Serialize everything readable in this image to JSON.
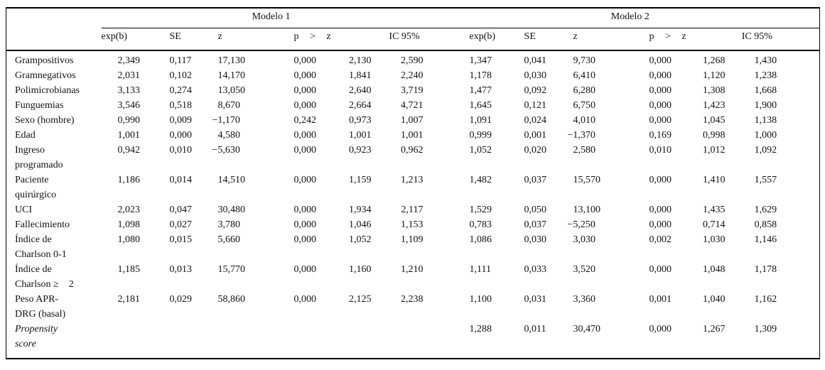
{
  "table": {
    "model1_label": "Modelo 1",
    "model2_label": "Modelo 2",
    "col_headers": {
      "expb": "exp(b)",
      "se": "SE",
      "z": "z",
      "p": "p > z",
      "ic": "IC 95%"
    },
    "rows": [
      {
        "label": "Grampositivos",
        "italic": false,
        "m1": [
          "2,349",
          "0,117",
          "17,130",
          "0,000",
          "2,130",
          "2,590"
        ],
        "m2": [
          "1,347",
          "0,041",
          "9,730",
          "0,000",
          "1,268",
          "1,430"
        ]
      },
      {
        "label": "Gramnegativos",
        "italic": false,
        "m1": [
          "2,031",
          "0,102",
          "14,170",
          "0,000",
          "1,841",
          "2,240"
        ],
        "m2": [
          "1,178",
          "0,030",
          "6,410",
          "0,000",
          "1,120",
          "1,238"
        ]
      },
      {
        "label": "Polimicrobianas",
        "italic": false,
        "m1": [
          "3,133",
          "0,274",
          "13,050",
          "0,000",
          "2,640",
          "3,719"
        ],
        "m2": [
          "1,477",
          "0,092",
          "6,280",
          "0,000",
          "1,308",
          "1,668"
        ]
      },
      {
        "label": "Funguemias",
        "italic": false,
        "m1": [
          "3,546",
          "0,518",
          "8,670",
          "0,000",
          "2,664",
          "4,721"
        ],
        "m2": [
          "1,645",
          "0,121",
          "6,750",
          "0,000",
          "1,423",
          "1,900"
        ]
      },
      {
        "label": "Sexo (hombre)",
        "italic": false,
        "m1": [
          "0,990",
          "0,009",
          "−1,170",
          "0,242",
          "0,973",
          "1,007"
        ],
        "m2": [
          "1,091",
          "0,024",
          "4,010",
          "0,000",
          "1,045",
          "1,138"
        ]
      },
      {
        "label": "Edad",
        "italic": false,
        "m1": [
          "1,001",
          "0,000",
          "4,580",
          "0,000",
          "1,001",
          "1,001"
        ],
        "m2": [
          "0,999",
          "0,001",
          "−1,370",
          "0,169",
          "0,998",
          "1,000"
        ]
      },
      {
        "label": "Ingreso\nprogramado",
        "italic": false,
        "m1": [
          "0,942",
          "0,010",
          "−5,630",
          "0,000",
          "0,923",
          "0,962"
        ],
        "m2": [
          "1,052",
          "0,020",
          "2,580",
          "0,010",
          "1,012",
          "1,092"
        ]
      },
      {
        "label": "Paciente\nquirúrgico",
        "italic": false,
        "m1": [
          "1,186",
          "0,014",
          "14,510",
          "0,000",
          "1,159",
          "1,213"
        ],
        "m2": [
          "1,482",
          "0,037",
          "15,570",
          "0,000",
          "1,410",
          "1,557"
        ]
      },
      {
        "label": "UCI",
        "italic": false,
        "m1": [
          "2,023",
          "0,047",
          "30,480",
          "0,000",
          "1,934",
          "2,117"
        ],
        "m2": [
          "1,529",
          "0,050",
          "13,100",
          "0,000",
          "1,435",
          "1,629"
        ]
      },
      {
        "label": "Fallecimiento",
        "italic": false,
        "m1": [
          "1,098",
          "0,027",
          "3,780",
          "0,000",
          "1,046",
          "1,153"
        ],
        "m2": [
          "0,783",
          "0,037",
          "−5,250",
          "0,000",
          "0,714",
          "0,858"
        ]
      },
      {
        "label": "Índice de\nCharlson 0-1",
        "italic": false,
        "m1": [
          "1,080",
          "0,015",
          "5,660",
          "0,000",
          "1,052",
          "1,109"
        ],
        "m2": [
          "1,086",
          "0,030",
          "3,030",
          "0,002",
          "1,030",
          "1,146"
        ]
      },
      {
        "label": "Índice de\nCharlson ≥    2",
        "italic": false,
        "m1": [
          "1,185",
          "0,013",
          "15,770",
          "0,000",
          "1,160",
          "1,210"
        ],
        "m2": [
          "1,111",
          "0,033",
          "3,520",
          "0,000",
          "1,048",
          "1,178"
        ]
      },
      {
        "label": "Peso APR-\nDRG (basal)",
        "italic": false,
        "m1": [
          "2,181",
          "0,029",
          "58,860",
          "0,000",
          "2,125",
          "2,238"
        ],
        "m2": [
          "1,100",
          "0,031",
          "3,360",
          "0,001",
          "1,040",
          "1,162"
        ]
      },
      {
        "label": "Propensity\nscore",
        "italic": true,
        "m1": [
          "",
          "",
          "",
          "",
          "",
          ""
        ],
        "m2": [
          "1,288",
          "0,011",
          "30,470",
          "0,000",
          "1,267",
          "1,309"
        ]
      }
    ]
  }
}
